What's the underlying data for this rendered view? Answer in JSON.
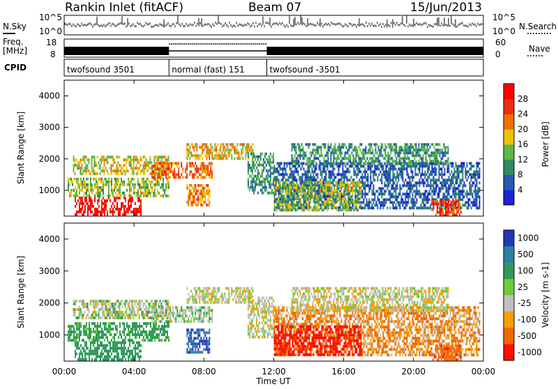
{
  "header": {
    "station": "Rankin Inlet (fitACF)",
    "beam": "Beam 07",
    "date": "15/Jun/2013"
  },
  "noise_panel": {
    "left_label": "N.Sky",
    "left_ticks": [
      "10^5",
      "10^0"
    ],
    "right_label": "N.Search",
    "right_ticks": [
      "10^5",
      "10^0"
    ]
  },
  "freq_panel": {
    "left_label": "Freq.",
    "left_unit": "[MHz]",
    "left_ticks": [
      "18",
      "8"
    ],
    "right_label": "Nave",
    "right_ticks": [
      "60",
      "0"
    ]
  },
  "cpid_panel": {
    "label": "CPID",
    "segments": [
      {
        "name": "twofsound 3501",
        "start": 0,
        "end": 6
      },
      {
        "name": "normal (fast) 151",
        "start": 6,
        "end": 11.6
      },
      {
        "name": "twofsound -3501",
        "start": 11.6,
        "end": 24
      }
    ]
  },
  "time_axis": {
    "label": "Time UT",
    "ticks": [
      "00:00",
      "04:00",
      "08:00",
      "12:00",
      "16:00",
      "20:00",
      "00:00"
    ]
  },
  "range_axis": {
    "label": "Slant Range [km]",
    "ticks": [
      "1000",
      "2000",
      "3000",
      "4000"
    ]
  },
  "power_scale": {
    "label": "Power [dB]",
    "ticks": [
      "4",
      "8",
      "12",
      "16",
      "20",
      "24",
      "28"
    ],
    "colors": [
      "#1c22d6",
      "#265ab3",
      "#2f8a60",
      "#5cb84a",
      "#f0c000",
      "#f07000",
      "#e83010",
      "#ff0000"
    ]
  },
  "velocity_scale": {
    "label": "Velocity [m s-1]",
    "ticks": [
      "1000",
      "500",
      "100",
      "25",
      "-25",
      "-100",
      "-500",
      "-1000"
    ],
    "colors": [
      "#2038b8",
      "#2d7fa8",
      "#2f9a5a",
      "#6ccc3a",
      "#c0c0c0",
      "#f8a000",
      "#f06800",
      "#ff1000"
    ]
  },
  "chart_data": {
    "type": "heatmap",
    "title": "Rankin Inlet (fitACF)",
    "xlabel": "Time UT",
    "ylabel": "Slant Range [km]",
    "xlim": [
      "00:00",
      "24:00"
    ],
    "ylim": [
      180,
      4500
    ],
    "power_db_range": [
      0,
      30
    ],
    "velocity_range_ms": [
      -1000,
      1000
    ],
    "echo_regions": [
      {
        "t0": 0.6,
        "t1": 4.4,
        "r0": 200,
        "r1": 800,
        "power_db": 28,
        "velocity": 150
      },
      {
        "t0": 0.2,
        "t1": 6.0,
        "r0": 800,
        "r1": 1400,
        "power_db": 14,
        "velocity": 100
      },
      {
        "t0": 0.5,
        "t1": 6.0,
        "r0": 1500,
        "r1": 2100,
        "power_db": 16,
        "velocity": 20
      },
      {
        "t0": 5.0,
        "t1": 8.5,
        "r0": 1400,
        "r1": 1900,
        "power_db": 22,
        "velocity": 30
      },
      {
        "t0": 7.0,
        "t1": 10.8,
        "r0": 2000,
        "r1": 2500,
        "power_db": 18,
        "velocity": 0
      },
      {
        "t0": 7.0,
        "t1": 8.3,
        "r0": 500,
        "r1": 1200,
        "power_db": 20,
        "velocity": 600
      },
      {
        "t0": 10.5,
        "t1": 12.0,
        "r0": 900,
        "r1": 2200,
        "power_db": 10,
        "velocity": 0
      },
      {
        "t0": 12.0,
        "t1": 23.8,
        "r0": 400,
        "r1": 1900,
        "power_db": 6,
        "velocity": -60
      },
      {
        "t0": 12.0,
        "t1": 17.0,
        "r0": 400,
        "r1": 1300,
        "power_db": 14,
        "velocity": -300
      },
      {
        "t0": 13.0,
        "t1": 22.0,
        "r0": 1800,
        "r1": 2500,
        "power_db": 10,
        "velocity": 0
      },
      {
        "t0": 21.0,
        "t1": 22.7,
        "r0": 200,
        "r1": 700,
        "power_db": 24,
        "velocity": -200
      }
    ]
  }
}
